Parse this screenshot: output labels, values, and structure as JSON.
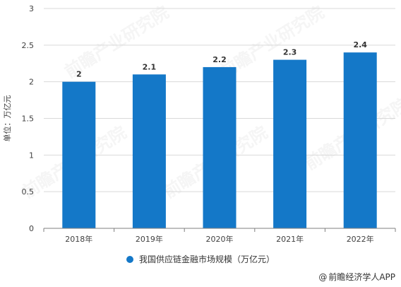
{
  "colors": {
    "bar": "#1478c8",
    "axis": "#7f7f7f",
    "grid": "#d9d9d9",
    "tick_text": "#404040"
  },
  "watermark_text": "前瞻产业研究院",
  "credit": {
    "at": "@",
    "text": "前瞻经济学人APP"
  },
  "chart_data": {
    "type": "bar",
    "categories": [
      "2018年",
      "2019年",
      "2020年",
      "2021年",
      "2022年"
    ],
    "series": [
      {
        "name": "我国供应链金融市场规模（万亿元）",
        "values": [
          2,
          2.1,
          2.2,
          2.3,
          2.4
        ],
        "data_labels": [
          "2",
          "2.1",
          "2.2",
          "2.3",
          "2.4"
        ]
      }
    ],
    "title": "",
    "xlabel": "",
    "ylabel": "单位：万亿元",
    "ylim": [
      0,
      3
    ],
    "yticks": [
      0,
      0.5,
      1,
      1.5,
      2,
      2.5,
      3
    ],
    "ytick_labels": [
      "0",
      "0.5",
      "1",
      "1.5",
      "2",
      "2.5",
      "3"
    ],
    "grid": true,
    "legend_position": "bottom-center"
  }
}
